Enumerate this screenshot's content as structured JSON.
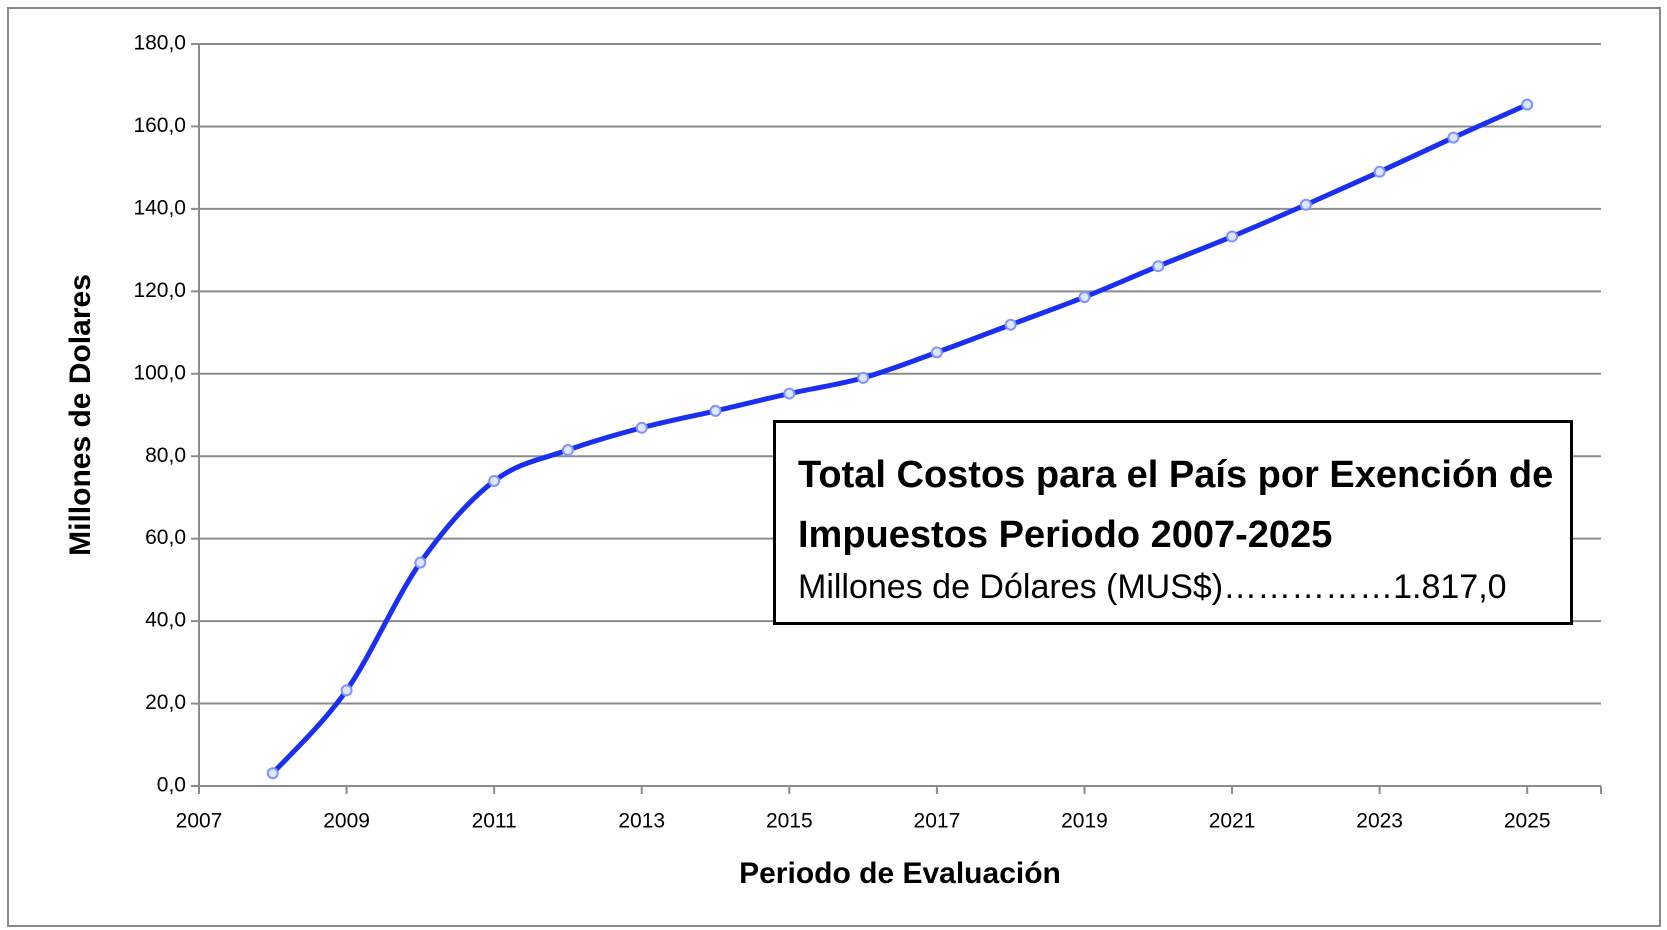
{
  "chart_data": {
    "type": "line",
    "x_label": "Periodo de Evaluación",
    "y_label": "Millones de Dolares",
    "annotation": {
      "title": "Total Costos para el País por Exención de Impuestos Periodo 2007-2025",
      "text": "Millones de Dólares (MUS$)……………1.817,0"
    },
    "x": [
      2008,
      2009,
      2010,
      2011,
      2012,
      2013,
      2014,
      2015,
      2016,
      2017,
      2018,
      2019,
      2020,
      2021,
      2022,
      2023,
      2024,
      2025
    ],
    "series": [
      {
        "color": "#1a2ff0",
        "values": [
          3.1,
          23.2,
          54.2,
          74.0,
          81.5,
          86.9,
          91.0,
          95.2,
          99.0,
          105.2,
          111.9,
          118.6,
          126.1,
          133.3,
          141.0,
          149.0,
          157.3,
          165.3
        ]
      }
    ],
    "xlim": [
      2007,
      2026
    ],
    "xticks": [
      2007,
      2009,
      2011,
      2013,
      2015,
      2017,
      2019,
      2021,
      2023,
      2025
    ],
    "ylim": [
      0,
      180
    ],
    "yticks": [
      {
        "value": 0,
        "label": "0,0"
      },
      {
        "value": 20,
        "label": "20,0"
      },
      {
        "value": 40,
        "label": "40,0"
      },
      {
        "value": 60,
        "label": "60,0"
      },
      {
        "value": 80,
        "label": "80,0"
      },
      {
        "value": 100,
        "label": "100,0"
      },
      {
        "value": 120,
        "label": "120,0"
      },
      {
        "value": 140,
        "label": "140,0"
      },
      {
        "value": 160,
        "label": "160,0"
      },
      {
        "value": 180,
        "label": "180,0"
      }
    ],
    "grid": true,
    "smooth": true
  }
}
